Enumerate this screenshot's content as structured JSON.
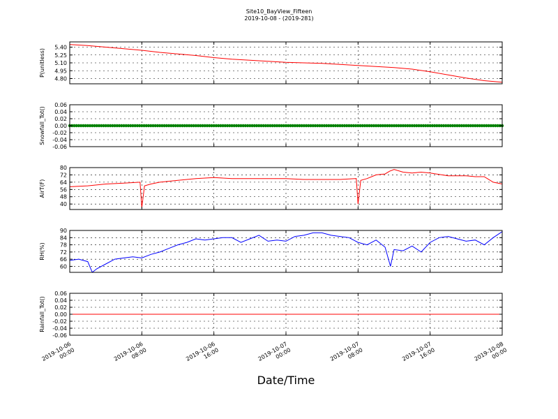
{
  "figure": {
    "title_line1": "Site10_BayView_Fifteen",
    "title_line2": "2019-10-08 - (2019-281)",
    "xlabel": "Date/Time"
  },
  "chart_data": [
    {
      "type": "line",
      "ylabel": "P(unitless)",
      "color": "#ff0000",
      "ylim": [
        4.7,
        5.5
      ],
      "yticks": [
        "5.40",
        "5.25",
        "5.10",
        "4.95",
        "4.80"
      ],
      "ytick_values": [
        5.4,
        5.25,
        5.1,
        4.95,
        4.8
      ],
      "x": [
        0,
        2,
        4,
        6,
        8,
        10,
        12,
        14,
        16,
        18,
        20,
        22,
        24,
        26,
        28,
        30,
        32,
        34,
        36,
        38,
        40,
        42,
        44,
        46,
        48
      ],
      "y": [
        5.45,
        5.43,
        5.4,
        5.37,
        5.34,
        5.3,
        5.27,
        5.24,
        5.2,
        5.17,
        5.15,
        5.13,
        5.11,
        5.1,
        5.09,
        5.07,
        5.05,
        5.03,
        5.01,
        4.98,
        4.93,
        4.87,
        4.81,
        4.76,
        4.73
      ]
    },
    {
      "type": "scatter",
      "ylabel": "Snowfall_Tot()",
      "color": "#008000",
      "ylim": [
        -0.06,
        0.06
      ],
      "yticks": [
        "0.06",
        "0.04",
        "0.02",
        "0.00",
        "-0.02",
        "-0.04",
        "-0.06"
      ],
      "ytick_values": [
        0.06,
        0.04,
        0.02,
        0.0,
        -0.02,
        -0.04,
        -0.06
      ],
      "x_range": [
        0,
        48
      ],
      "value": 0.0
    },
    {
      "type": "line",
      "ylabel": "AirT(F)",
      "color": "#ff0000",
      "ylim": [
        34,
        80
      ],
      "yticks": [
        "80",
        "72",
        "64",
        "56",
        "48",
        "40"
      ],
      "ytick_values": [
        80,
        72,
        64,
        56,
        48,
        40
      ],
      "x": [
        0,
        2,
        4,
        6,
        7.8,
        8.0,
        8.3,
        9,
        10,
        12,
        14,
        16,
        18,
        20,
        22,
        24,
        26,
        28,
        30,
        31.8,
        32.0,
        32.3,
        33,
        34,
        35,
        35.5,
        36,
        37,
        38,
        39,
        40,
        42,
        44,
        45,
        46,
        47,
        48
      ],
      "y": [
        59,
        60,
        62,
        63,
        64,
        36,
        60,
        62,
        64,
        66,
        68,
        69,
        68,
        68,
        68,
        68,
        67,
        67,
        67,
        68,
        40,
        66,
        68,
        72,
        73,
        76,
        78,
        75,
        74,
        75,
        74,
        71,
        71,
        70,
        70,
        64,
        62
      ]
    },
    {
      "type": "line",
      "ylabel": "RH(%)",
      "color": "#0000ff",
      "ylim": [
        55,
        90
      ],
      "yticks": [
        "90",
        "84",
        "78",
        "72",
        "66",
        "60"
      ],
      "ytick_values": [
        90,
        84,
        78,
        72,
        66,
        60
      ],
      "x": [
        0,
        1,
        2,
        2.5,
        3,
        4,
        5,
        6,
        7,
        8,
        9,
        10,
        11,
        12,
        13,
        14,
        15,
        16,
        17,
        18,
        19,
        20,
        21,
        22,
        23,
        24,
        25,
        26,
        27,
        28,
        29,
        30,
        31,
        32,
        33,
        34,
        35,
        35.6,
        36,
        37,
        38,
        39,
        40,
        41,
        42,
        43,
        44,
        45,
        46,
        47,
        48
      ],
      "y": [
        65,
        66,
        64,
        55,
        58,
        62,
        66,
        67,
        68,
        67,
        70,
        72,
        75,
        78,
        80,
        83,
        82,
        83,
        84,
        84,
        80,
        83,
        86,
        81,
        82,
        81,
        85,
        86,
        88,
        88,
        86,
        85,
        84,
        80,
        78,
        82,
        76,
        60,
        74,
        73,
        77,
        72,
        80,
        84,
        85,
        83,
        81,
        82,
        78,
        84,
        89
      ]
    },
    {
      "type": "line",
      "ylabel": "Rainfall_Tot()",
      "color": "#ff0000",
      "ylim": [
        -0.06,
        0.06
      ],
      "yticks": [
        "0.06",
        "0.04",
        "0.02",
        "0.00",
        "-0.02",
        "-0.04",
        "-0.06"
      ],
      "ytick_values": [
        0.06,
        0.04,
        0.02,
        0.0,
        -0.02,
        -0.04,
        -0.06
      ],
      "x": [
        0,
        48
      ],
      "y": [
        0.0,
        0.0
      ]
    }
  ],
  "x_axis": {
    "range_hours": [
      0,
      48
    ],
    "ticks": [
      {
        "hour": 0,
        "line1": "2019-10-06",
        "line2": "00:00"
      },
      {
        "hour": 8,
        "line1": "2019-10-06",
        "line2": "08:00"
      },
      {
        "hour": 16,
        "line1": "2019-10-06",
        "line2": "16:00"
      },
      {
        "hour": 24,
        "line1": "2019-10-07",
        "line2": "00:00"
      },
      {
        "hour": 32,
        "line1": "2019-10-07",
        "line2": "08:00"
      },
      {
        "hour": 40,
        "line1": "2019-10-07",
        "line2": "16:00"
      },
      {
        "hour": 48,
        "line1": "2019-10-08",
        "line2": "00:00"
      }
    ]
  }
}
